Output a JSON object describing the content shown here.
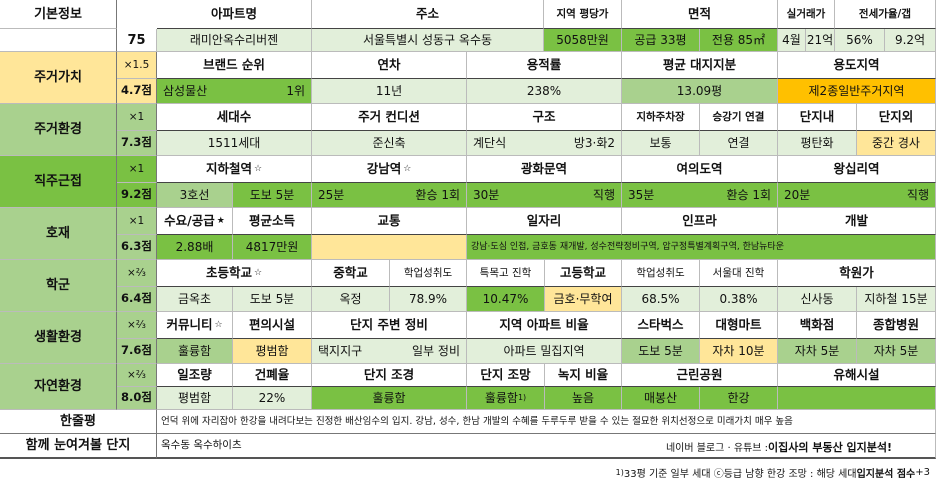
{
  "basic": {
    "label": "기본정보",
    "score": "75",
    "headers": {
      "name": "아파트명",
      "address": "주소",
      "avg_price": "지역 평당가",
      "area": "면적",
      "trade": "실거래가",
      "ratio": "전세가율/갭"
    },
    "name": "래미안옥수리버젠",
    "address": "서울특별시 성동구 옥수동",
    "avg_price": "5058만원",
    "supply_area": "공급 33평",
    "exclusive_area": "전용 85㎡",
    "trade_month": "4월",
    "trade_price": "21억",
    "jeonse_ratio": "56%",
    "gap": "9.2억"
  },
  "value": {
    "label": "주거가치",
    "weight": "×1.5",
    "score": "4.7점",
    "headers": {
      "brand": "브랜드 순위",
      "age": "연차",
      "far": "용적률",
      "land": "평균 대지지분",
      "zone": "용도지역"
    },
    "brand": "삼성물산",
    "brand_rank": "1위",
    "age": "11년",
    "far": "238%",
    "land": "13.09평",
    "zone": "제2종일반주거지역"
  },
  "env": {
    "label": "주거환경",
    "weight": "×1",
    "score": "7.3점",
    "headers": {
      "households": "세대수",
      "condition": "주거 컨디션",
      "structure": "구조",
      "parking": "지하주차장",
      "elevator": "승강기 연결",
      "inside": "단지내",
      "outside": "단지외"
    },
    "households": "1511세대",
    "condition": "준신축",
    "stair": "계단식",
    "rooms": "방3·화2",
    "parking": "보통",
    "elevator": "연결",
    "inside": "평탄화",
    "outside": "중간 경사"
  },
  "commute": {
    "label": "직주근접",
    "weight": "×1",
    "score": "9.2점",
    "headers": {
      "subway": "지하철역",
      "gangnam": "강남역",
      "gwanghwamun": "광화문역",
      "yeouido": "여의도역",
      "wangsimni": "왕십리역"
    },
    "star": "☆",
    "subway_line": "3호선",
    "walk": "도보 5분",
    "gangnam_time": "25분",
    "gangnam_transfer": "환승 1회",
    "gwanghwamun_time": "30분",
    "gwanghwamun_transfer": "직행",
    "yeouido_time": "35분",
    "yeouido_transfer": "환승 1회",
    "wangsimni_time": "20분",
    "wangsimni_transfer": "직행"
  },
  "dev": {
    "label": "호재",
    "weight": "×1",
    "score": "6.3점",
    "headers": {
      "supply": "수요/공급",
      "income": "평균소득",
      "traffic": "교통",
      "jobs": "일자리",
      "infra": "인프라",
      "develop": "개발"
    },
    "star": "★",
    "supply": "2.88배",
    "income": "4817만원",
    "detail": "강남·도심 인접, 금호동 재개발, 성수전략정비구역, 압구정특별계획구역, 한남뉴타운"
  },
  "school": {
    "label": "학군",
    "weight": "×⅔",
    "score": "6.4점",
    "headers": {
      "elementary": "초등학교",
      "middle": "중학교",
      "middle_perf": "학업성취도",
      "special": "특목고 진학",
      "high": "고등학교",
      "high_perf": "학업성취도",
      "snu": "서울대 진학",
      "academy": "학원가"
    },
    "star": "☆",
    "elementary": "금옥초",
    "elementary_walk": "도보 5분",
    "middle": "옥정",
    "middle_perf": "78.9%",
    "special": "10.47%",
    "high": "금호·무학여",
    "high_perf": "68.5%",
    "snu": "0.38%",
    "academy": "신사동",
    "academy_access": "지하철 15분"
  },
  "life": {
    "label": "생활환경",
    "weight": "×⅔",
    "score": "7.6점",
    "headers": {
      "community": "커뮤니티",
      "amenities": "편의시설",
      "around": "단지 주변 정비",
      "ratio": "지역 아파트 비율",
      "starbucks": "스타벅스",
      "mart": "대형마트",
      "dept": "백화점",
      "hospital": "종합병원"
    },
    "star": "☆",
    "community": "훌륭함",
    "amenities": "평범함",
    "around_type": "택지지구",
    "around_state": "일부 정비",
    "ratio": "아파트 밀집지역",
    "starbucks": "도보 5분",
    "mart": "자차 10분",
    "dept": "자차 5분",
    "hospital": "자차 5분"
  },
  "nature": {
    "label": "자연환경",
    "weight": "×⅔",
    "score": "8.0점",
    "headers": {
      "green": "일조량",
      "coverage": "건폐율",
      "landscape": "단지 조경",
      "view": "단지 조망",
      "green_ratio": "녹지 비율",
      "park": "근린공원",
      "facility": "유해시설"
    },
    "green": "평범함",
    "coverage": "22%",
    "landscape": "훌륭함",
    "view": "훌륭함",
    "view_mark": "1)",
    "green_ratio": "높음",
    "park_name": "매봉산",
    "park_river": "한강",
    "facility": ""
  },
  "review": {
    "label": "한줄평",
    "text": "언덕 위에 자리잡아 한강을 내려다보는 진정한 배산임수의 입지. 강남, 성수, 한남 개발의 수혜를 두루두루 받을 수 있는 절묘한 위치선정으로 미래가치 매우 높음"
  },
  "compare": {
    "label": "함께 눈여겨볼 단지",
    "value": "옥수동 옥수하이츠",
    "credit_prefix": "네이버 블로그 · 유튜브 : ",
    "credit_name": "이집사의 부동산 입지분석!"
  },
  "footnote": {
    "mark": "1)",
    "text": "33평 기준 일부 세대 ⓒ등급 남향 한강 조망 : 해당 세대 ",
    "bold": "입지분석 점수",
    "suffix": " +3"
  },
  "colors": {
    "green_dark": "#7ac143",
    "green_mid": "#a9d18e",
    "green_light": "#e2efda",
    "yellow": "#ffe699",
    "orange": "#ffc000"
  }
}
